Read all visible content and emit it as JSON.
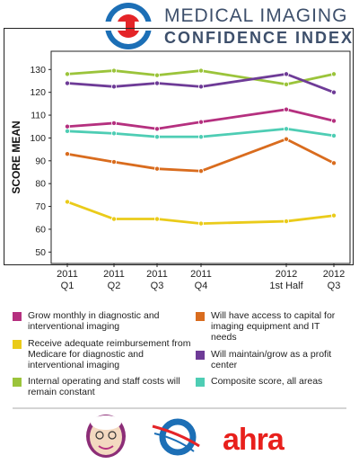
{
  "header": {
    "title_line1": "MEDICAL IMAGING",
    "title_line2": "CONFIDENCE INDEX"
  },
  "chart_data": {
    "type": "line",
    "title": "",
    "xlabel": "",
    "ylabel": "SCORE MEAN",
    "ylim": [
      45,
      138
    ],
    "y_ticks": [
      50,
      60,
      70,
      80,
      90,
      100,
      110,
      120,
      130
    ],
    "categories": [
      [
        "2011",
        "Q1"
      ],
      [
        "2011",
        "Q2"
      ],
      [
        "2011",
        "Q3"
      ],
      [
        "2011",
        "Q4"
      ],
      [
        "2012",
        "1st Half"
      ],
      [
        "2012",
        "Q3"
      ]
    ],
    "grid": false,
    "series": [
      {
        "name": "Internal operating and staff costs will remain constant",
        "color": "#9bc43b",
        "values": [
          128,
          129.5,
          127.5,
          129.5,
          123.5,
          128
        ]
      },
      {
        "name": "Will maintain/grow as a profit center",
        "color": "#6e3b97",
        "values": [
          124,
          122.5,
          124,
          122.5,
          128,
          120
        ]
      },
      {
        "name": "Grow monthly in diagnostic and interventional imaging",
        "color": "#b5307f",
        "values": [
          105,
          106.5,
          104,
          107,
          112.5,
          107.5
        ]
      },
      {
        "name": "Composite score, all areas",
        "color": "#4ecdb4",
        "values": [
          103,
          102,
          100.5,
          100.5,
          104,
          101
        ]
      },
      {
        "name": "Will have access to capital for imaging equipment and IT needs",
        "color": "#d96c1e",
        "values": [
          93,
          89.5,
          86.5,
          85.5,
          99.5,
          89
        ]
      },
      {
        "name": "Receive adequate reimbursement from Medicare for diagnostic and interventional imaging",
        "color": "#eacb1a",
        "values": [
          72,
          64.5,
          64.5,
          62.5,
          63.5,
          66
        ]
      }
    ]
  },
  "legend": {
    "items": [
      {
        "label": "Grow monthly in diagnostic and interventional imaging",
        "color": "#b5307f"
      },
      {
        "label": "Receive adequate reimbursement from Medicare for diagnostic and interventional imaging",
        "color": "#eacb1a"
      },
      {
        "label": "Internal operating and staff costs will remain constant",
        "color": "#9bc43b"
      },
      {
        "label": "Will have access to capital for imaging equipment and IT needs",
        "color": "#d96c1e"
      },
      {
        "label": "Will maintain/grow as a profit center",
        "color": "#6e3b97"
      },
      {
        "label": "Composite score, all areas",
        "color": "#4ecdb4"
      }
    ]
  },
  "footer": {
    "logos": [
      "grandmother-mascot-icon",
      "blue-red-swoosh-logo-icon",
      "ahra-logo"
    ],
    "ahra_text": "ahra"
  }
}
